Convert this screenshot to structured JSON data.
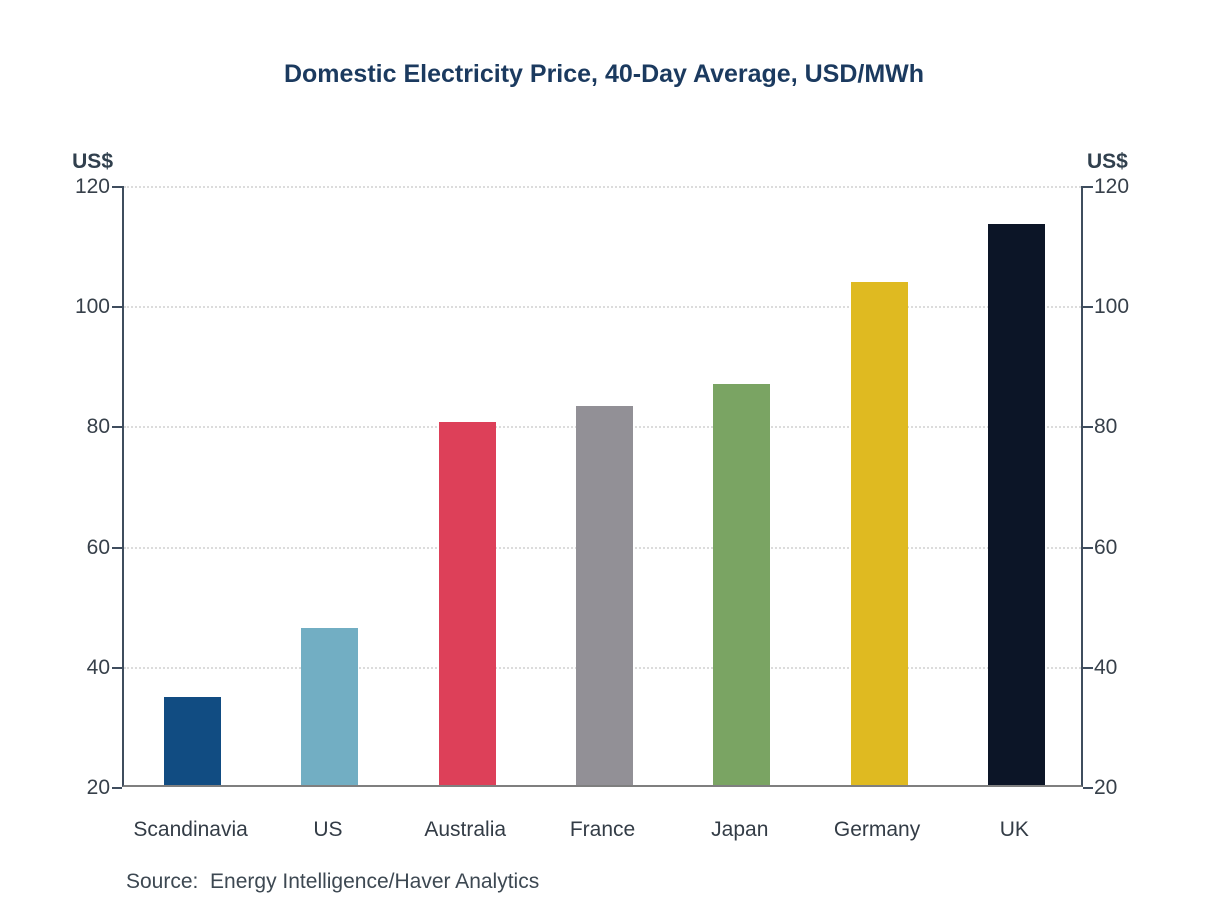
{
  "chart_data": {
    "type": "bar",
    "title": "Domestic Electricity Price, 40-Day Average, USD/MWh",
    "categories": [
      "Scandinavia",
      "US",
      "Australia",
      "France",
      "Japan",
      "Germany",
      "UK"
    ],
    "values": [
      34.6,
      46.2,
      80.4,
      83.1,
      86.7,
      103.7,
      113.4
    ],
    "bar_colors": [
      "#114c82",
      "#72aec3",
      "#dd4059",
      "#929096",
      "#7aa463",
      "#dfba21",
      "#0c1527"
    ],
    "ylabel_left": "US$",
    "ylabel_right": "US$",
    "ylim": [
      20,
      120
    ],
    "yticks": [
      20,
      40,
      60,
      80,
      100,
      120
    ],
    "grid": "horizontal dotted lines at 40,60,80,100,120",
    "legend": "none",
    "source": "Source:  Energy Intelligence/Haver Analytics"
  },
  "colors": {
    "title_text": "#1b3a5f",
    "axis_line": "#3f4d5e",
    "baseline": "#7f7f7f",
    "gridline": "#dcdcdc",
    "tick_text": "#37404a"
  }
}
